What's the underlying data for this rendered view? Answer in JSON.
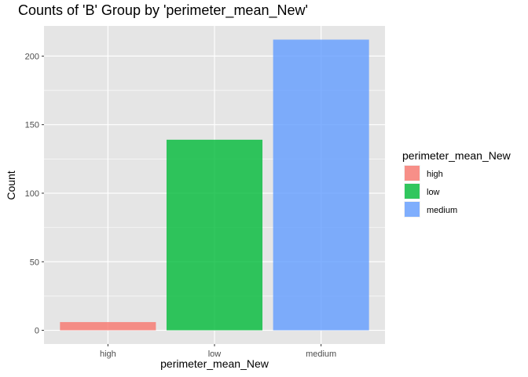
{
  "chart_data": {
    "type": "bar",
    "title": "Counts of 'B' Group by 'perimeter_mean_New'",
    "xlabel": "perimeter_mean_New",
    "ylabel": "Count",
    "categories": [
      "high",
      "low",
      "medium"
    ],
    "values": [
      6,
      139,
      212
    ],
    "colors": [
      "#F8766D",
      "#00BA38",
      "#619CFF"
    ],
    "bar_opacity": 0.8,
    "ylim": [
      -10,
      222
    ],
    "yticks": [
      0,
      50,
      100,
      150,
      200
    ],
    "grid": true,
    "panel_background": "#E5E5E5",
    "legend": {
      "title": "perimeter_mean_New",
      "position": "right",
      "items": [
        "high",
        "low",
        "medium"
      ]
    }
  }
}
